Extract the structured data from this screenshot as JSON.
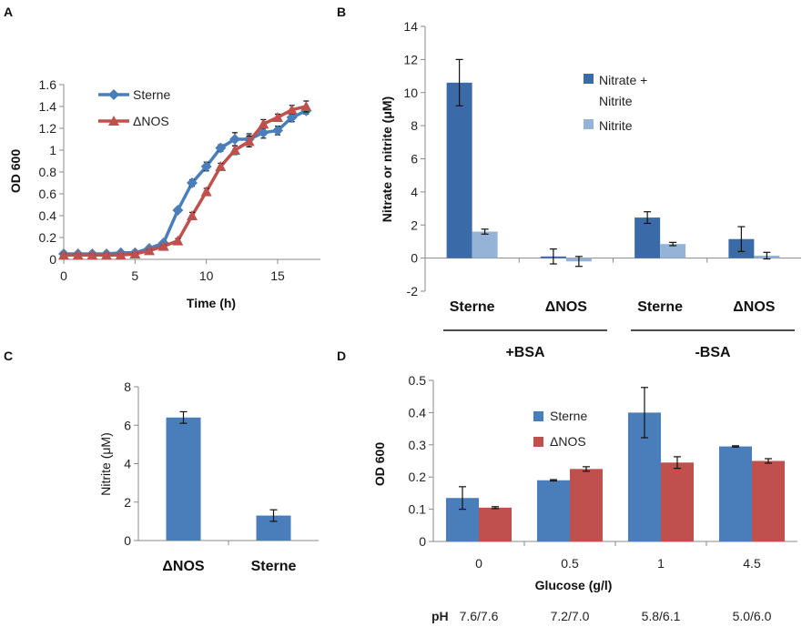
{
  "colors": {
    "blue": "#4A7EBB",
    "red": "#C0504D",
    "navy": "#3B6AA8",
    "lightblue": "#95B3D7",
    "axis": "#888888"
  },
  "chart_data": [
    {
      "panel": "A",
      "type": "line",
      "xlabel": "Time (h)",
      "ylabel": "OD 600",
      "xlim": [
        0,
        18
      ],
      "ylim": [
        0,
        1.6
      ],
      "xticks": [
        "0",
        "5",
        "10",
        "15"
      ],
      "yticks": [
        "0",
        "0.2",
        "0.4",
        "0.6",
        "0.8",
        "1",
        "1.2",
        "1.4",
        "1.6"
      ],
      "legend": "top-left",
      "series": [
        {
          "name": "Sterne",
          "color": "#4A7EBB",
          "marker": "diamond",
          "x": [
            0,
            1,
            2,
            3,
            4,
            5,
            6,
            7,
            8,
            9,
            10,
            11,
            12,
            13,
            14,
            15,
            16,
            17
          ],
          "y": [
            0.05,
            0.05,
            0.05,
            0.05,
            0.06,
            0.06,
            0.1,
            0.15,
            0.45,
            0.7,
            0.85,
            1.02,
            1.1,
            1.1,
            1.16,
            1.18,
            1.3,
            1.36
          ],
          "err": [
            0.01,
            0.01,
            0.01,
            0.01,
            0.01,
            0.01,
            0.01,
            0.02,
            0.02,
            0.03,
            0.04,
            0.03,
            0.06,
            0.05,
            0.05,
            0.04,
            0.04,
            0.03
          ]
        },
        {
          "name": "ΔNOS",
          "color": "#C0504D",
          "marker": "triangle",
          "x": [
            0,
            1,
            2,
            3,
            4,
            5,
            6,
            7,
            8,
            9,
            10,
            11,
            12,
            13,
            14,
            15,
            16,
            17
          ],
          "y": [
            0.04,
            0.04,
            0.04,
            0.04,
            0.04,
            0.05,
            0.08,
            0.12,
            0.17,
            0.4,
            0.62,
            0.85,
            1.0,
            1.08,
            1.24,
            1.3,
            1.37,
            1.4
          ],
          "err": [
            0.01,
            0.01,
            0.01,
            0.01,
            0.01,
            0.01,
            0.01,
            0.01,
            0.02,
            0.03,
            0.03,
            0.03,
            0.04,
            0.05,
            0.04,
            0.03,
            0.04,
            0.05
          ]
        }
      ]
    },
    {
      "panel": "B",
      "type": "bar",
      "ylabel": "Nitrate or nitrite (μM)",
      "ylim": [
        -2,
        14
      ],
      "yticks": [
        "-2",
        "0",
        "2",
        "4",
        "6",
        "8",
        "10",
        "12",
        "14"
      ],
      "categories": [
        "Sterne",
        "ΔNOS",
        "Sterne",
        "ΔNOS"
      ],
      "groups": [
        "+BSA",
        "-BSA"
      ],
      "legend": "right",
      "series": [
        {
          "name": "Nitrate + Nitrite",
          "legend_lines": [
            "Nitrate +",
            "Nitrite"
          ],
          "color": "#3B6AA8",
          "values": [
            10.6,
            0.1,
            2.45,
            1.15
          ],
          "err": [
            1.4,
            0.45,
            0.35,
            0.75
          ]
        },
        {
          "name": "Nitrite",
          "legend_lines": [
            "Nitrite"
          ],
          "color": "#95B3D7",
          "values": [
            1.6,
            -0.2,
            0.85,
            0.15
          ],
          "err": [
            0.15,
            0.3,
            0.1,
            0.2
          ]
        }
      ]
    },
    {
      "panel": "C",
      "type": "bar",
      "ylabel": "Nitrite (μM)",
      "ylim": [
        0,
        8
      ],
      "yticks": [
        "0",
        "2",
        "4",
        "6",
        "8"
      ],
      "categories": [
        "ΔNOS",
        "Sterne"
      ],
      "series": [
        {
          "name": "Nitrite",
          "color": "#4A7EBB",
          "values": [
            6.4,
            1.3
          ],
          "err": [
            0.3,
            0.3
          ]
        }
      ]
    },
    {
      "panel": "D",
      "type": "bar",
      "xlabel": "Glucose (g/l)",
      "ylabel": "OD 600",
      "ylim": [
        0,
        0.5
      ],
      "yticks": [
        "0",
        "0.1",
        "0.2",
        "0.3",
        "0.4",
        "0.5"
      ],
      "categories": [
        "0",
        "0.5",
        "1",
        "4.5"
      ],
      "legend": "top-center",
      "ph_label": "pH",
      "ph_values": [
        "7.6/7.6",
        "7.2/7.0",
        "5.8/6.1",
        "5.0/6.0"
      ],
      "series": [
        {
          "name": "Sterne",
          "color": "#4A7EBB",
          "values": [
            0.135,
            0.19,
            0.4,
            0.295
          ],
          "err": [
            0.035,
            0.002,
            0.078,
            0.002
          ]
        },
        {
          "name": "ΔNOS",
          "color": "#C0504D",
          "values": [
            0.105,
            0.225,
            0.245,
            0.25
          ],
          "err": [
            0.003,
            0.007,
            0.018,
            0.007
          ]
        }
      ]
    }
  ]
}
